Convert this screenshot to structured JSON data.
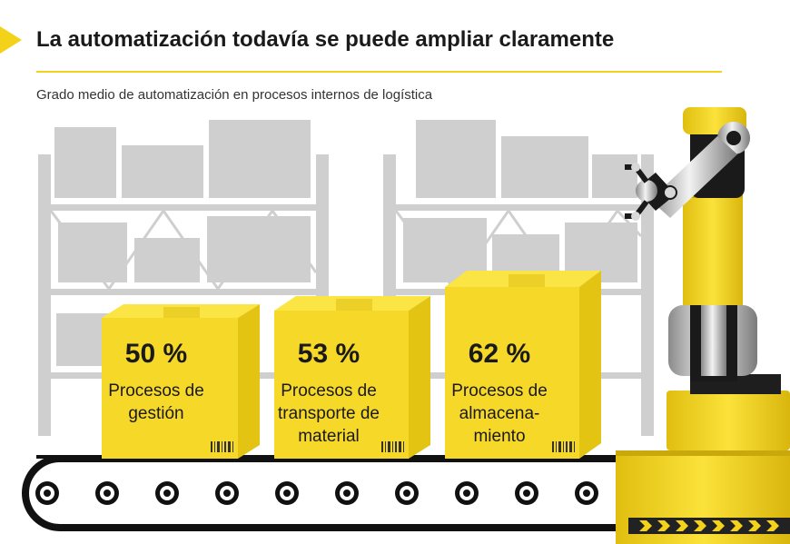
{
  "header": {
    "title": "La automatización todavía se puede ampliar claramente",
    "subtitle": "Grado medio de automatización en procesos internos de logística"
  },
  "boxes": [
    {
      "percent": "50 %",
      "label": "Procesos de\ngestión",
      "value": 50
    },
    {
      "percent": "53 %",
      "label": "Procesos de\ntransporte de\nmaterial",
      "value": 53
    },
    {
      "percent": "62 %",
      "label": "Procesos de\nalmacena-\nmiento",
      "value": 62
    }
  ],
  "colors": {
    "brand_yellow": "#f5d21a",
    "box_yellow": "#f6d829",
    "box_side": "#e3c412",
    "shelf_gray": "#cfcfcf",
    "dark": "#1a1a1a"
  },
  "icons": [
    "robot-arm-icon",
    "conveyor-belt-icon",
    "barcode-icon",
    "warehouse-shelf-icon"
  ]
}
